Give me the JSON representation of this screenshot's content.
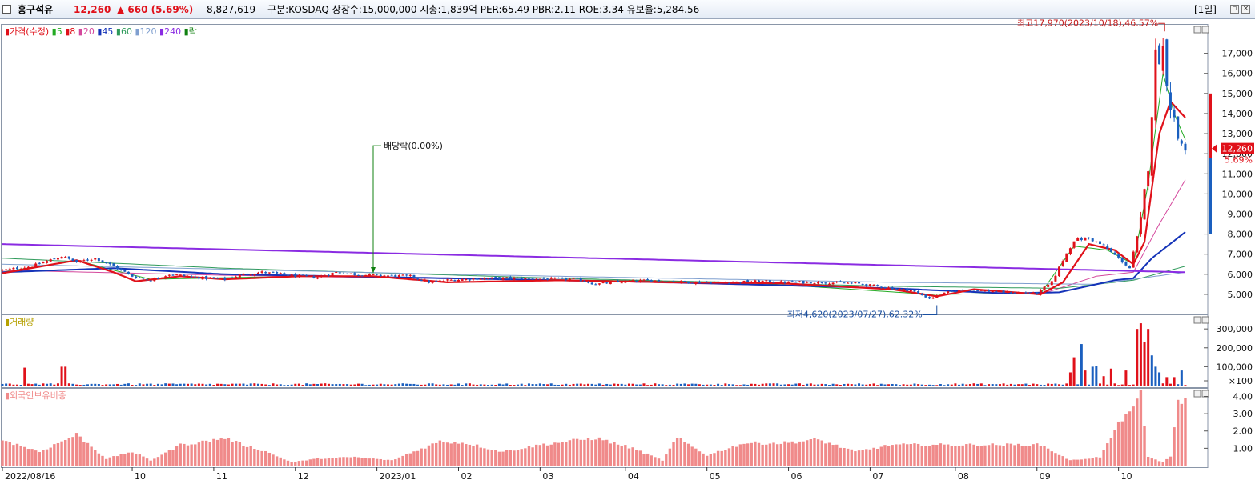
{
  "header": {
    "name": "흥구석유",
    "price": "12,260",
    "change": "▲ 660 (5.69%)",
    "volume": "8,827,619",
    "info": "구분:KOSDAQ  상장수:15,000,000  시총:1,839억  PER:65.49  PBR:2.11  ROE:3.34  유보율:5,284.56",
    "period": "[1일]"
  },
  "legend": {
    "price": [
      "가격(수정)",
      "5",
      "8",
      "20",
      "45",
      "60",
      "120",
      "240",
      "락"
    ],
    "volume": "거래량",
    "foreign": "외국인보유비중"
  },
  "annotations": {
    "high": "최고17,970(2023/10/18),46.57%",
    "low": "최저4,620(2023/07/27),62.32%",
    "dividend": "배당락(0.00%)"
  },
  "tags": {
    "current_price": "12,260",
    "current_pct": "5.69%"
  },
  "colors": {
    "up": "#e0111a",
    "down": "#1a5fbf",
    "ma5": "#22aa22",
    "ma8": "#e0111a",
    "ma20": "#d4479c",
    "ma45": "#1433b8",
    "ma60": "#2e9a5a",
    "ma120": "#7f9fcf",
    "ma240": "#8a2be2",
    "foreign": "#f08a8a",
    "annot_high": "#c41a1a",
    "annot_low": "#1a4fa0",
    "annot_div": "#108010"
  },
  "chart_data": [
    {
      "type": "candlestick",
      "title": "",
      "ylim": [
        4200,
        18300
      ],
      "y_ticks": [
        5000,
        6000,
        7000,
        8000,
        9000,
        10000,
        11000,
        12000,
        13000,
        14000,
        15000,
        16000,
        17000
      ],
      "y_tick_labels": [
        "5,000",
        "6,000",
        "7,000",
        "8,000",
        "9,000",
        "10,000",
        "11,000",
        "12,000",
        "13,000",
        "14,000",
        "15,000",
        "16,000",
        "17,000"
      ],
      "x_labels": [
        "2022/08/16",
        "10",
        "11",
        "12",
        "2023/01",
        "02",
        "03",
        "04",
        "05",
        "06",
        "07",
        "08",
        "09",
        "10"
      ],
      "price_path": [
        [
          0,
          6200
        ],
        [
          8,
          6400
        ],
        [
          16,
          6900
        ],
        [
          20,
          6600
        ],
        [
          25,
          6800
        ],
        [
          30,
          6400
        ],
        [
          35,
          5900
        ],
        [
          40,
          5700
        ],
        [
          45,
          6000
        ],
        [
          50,
          5900
        ],
        [
          55,
          5800
        ],
        [
          60,
          5750
        ],
        [
          65,
          6000
        ],
        [
          70,
          6100
        ],
        [
          75,
          6000
        ],
        [
          80,
          5900
        ],
        [
          85,
          5850
        ],
        [
          90,
          6100
        ],
        [
          95,
          6000
        ],
        [
          100,
          5950
        ],
        [
          110,
          5900
        ],
        [
          115,
          5600
        ],
        [
          120,
          5700
        ],
        [
          130,
          5800
        ],
        [
          140,
          5800
        ],
        [
          150,
          5750
        ],
        [
          155,
          5750
        ],
        [
          160,
          5500
        ],
        [
          165,
          5600
        ],
        [
          170,
          5650
        ],
        [
          175,
          5700
        ],
        [
          185,
          5600
        ],
        [
          195,
          5600
        ],
        [
          205,
          5650
        ],
        [
          210,
          5600
        ],
        [
          220,
          5600
        ],
        [
          230,
          5550
        ],
        [
          240,
          5300
        ],
        [
          245,
          5200
        ],
        [
          250,
          4800
        ],
        [
          255,
          5100
        ],
        [
          260,
          5250
        ],
        [
          270,
          5100
        ],
        [
          279,
          5050
        ],
        [
          283,
          5600
        ],
        [
          286,
          6700
        ],
        [
          289,
          7700
        ],
        [
          293,
          7800
        ],
        [
          297,
          7400
        ],
        [
          301,
          6800
        ],
        [
          304,
          6300
        ],
        [
          307,
          8600
        ],
        [
          309,
          11500
        ],
        [
          311,
          16800
        ],
        [
          313,
          17200
        ],
        [
          315,
          14500
        ],
        [
          317,
          12800
        ],
        [
          319,
          12260
        ]
      ],
      "moving_averages": [
        {
          "name": "8",
          "color": "#e0111a",
          "width": 2.2,
          "values": [
            [
              0,
              6050
            ],
            [
              20,
              6700
            ],
            [
              30,
              6100
            ],
            [
              36,
              5650
            ],
            [
              48,
              5900
            ],
            [
              60,
              5750
            ],
            [
              80,
              5900
            ],
            [
              100,
              5900
            ],
            [
              120,
              5600
            ],
            [
              150,
              5700
            ],
            [
              180,
              5600
            ],
            [
              210,
              5550
            ],
            [
              240,
              5250
            ],
            [
              252,
              4900
            ],
            [
              262,
              5250
            ],
            [
              280,
              5000
            ],
            [
              286,
              5600
            ],
            [
              293,
              7500
            ],
            [
              300,
              7200
            ],
            [
              305,
              6500
            ],
            [
              308,
              7600
            ],
            [
              312,
              13000
            ],
            [
              315,
              14600
            ],
            [
              319,
              13800
            ]
          ]
        },
        {
          "name": "45",
          "color": "#1433b8",
          "width": 2,
          "values": [
            [
              0,
              6100
            ],
            [
              30,
              6300
            ],
            [
              60,
              6000
            ],
            [
              120,
              5800
            ],
            [
              180,
              5600
            ],
            [
              240,
              5300
            ],
            [
              270,
              5050
            ],
            [
              285,
              5100
            ],
            [
              300,
              5700
            ],
            [
              305,
              5800
            ],
            [
              310,
              6800
            ],
            [
              319,
              8100
            ]
          ]
        },
        {
          "name": "240",
          "color": "#8a2be2",
          "width": 2,
          "values": [
            [
              0,
              7500
            ],
            [
              319,
              6100
            ]
          ]
        },
        {
          "name": "5",
          "color": "#22aa22",
          "width": 1,
          "values": [
            [
              0,
              6100
            ],
            [
              20,
              6700
            ],
            [
              30,
              6200
            ],
            [
              40,
              5750
            ],
            [
              80,
              5900
            ],
            [
              140,
              5750
            ],
            [
              200,
              5600
            ],
            [
              250,
              5000
            ],
            [
              280,
              5050
            ],
            [
              289,
              7400
            ],
            [
              298,
              7200
            ],
            [
              305,
              6500
            ],
            [
              309,
              10500
            ],
            [
              313,
              16000
            ],
            [
              316,
              14000
            ],
            [
              319,
              12700
            ]
          ]
        },
        {
          "name": "20",
          "color": "#d4479c",
          "width": 1,
          "values": [
            [
              0,
              6200
            ],
            [
              60,
              5950
            ],
            [
              150,
              5700
            ],
            [
              240,
              5300
            ],
            [
              280,
              5000
            ],
            [
              295,
              5900
            ],
            [
              305,
              6100
            ],
            [
              312,
              8500
            ],
            [
              319,
              10700
            ]
          ]
        },
        {
          "name": "60",
          "color": "#2e9a5a",
          "width": 1,
          "values": [
            [
              0,
              6800
            ],
            [
              60,
              6300
            ],
            [
              150,
              5800
            ],
            [
              240,
              5400
            ],
            [
              285,
              5300
            ],
            [
              305,
              5700
            ],
            [
              319,
              6400
            ]
          ]
        },
        {
          "name": "120",
          "color": "#7f9fcf",
          "width": 1,
          "values": [
            [
              0,
              6500
            ],
            [
              120,
              6000
            ],
            [
              240,
              5600
            ],
            [
              295,
              5500
            ],
            [
              319,
              6100
            ]
          ]
        }
      ]
    },
    {
      "type": "bar",
      "title": "",
      "ylim": [
        0,
        360000
      ],
      "y_ticks": [
        100,
        100000,
        200000,
        300000
      ],
      "y_tick_labels": [
        "×100",
        "100,000",
        "200,000",
        "300,000"
      ],
      "spikes": [
        [
          6,
          95000,
          "up"
        ],
        [
          16,
          100000,
          "up"
        ],
        [
          17,
          100000,
          "up"
        ],
        [
          288,
          70000,
          "up"
        ],
        [
          289,
          150000,
          "up"
        ],
        [
          291,
          220000,
          "down"
        ],
        [
          292,
          80000,
          "up"
        ],
        [
          294,
          100000,
          "down"
        ],
        [
          295,
          105000,
          "down"
        ],
        [
          297,
          50000,
          "up"
        ],
        [
          299,
          90000,
          "up"
        ],
        [
          303,
          80000,
          "up"
        ],
        [
          306,
          300000,
          "up"
        ],
        [
          307,
          330000,
          "up"
        ],
        [
          308,
          230000,
          "up"
        ],
        [
          309,
          300000,
          "up"
        ],
        [
          310,
          160000,
          "down"
        ],
        [
          311,
          100000,
          "down"
        ],
        [
          312,
          70000,
          "down"
        ],
        [
          314,
          45000,
          "up"
        ],
        [
          316,
          45000,
          "up"
        ],
        [
          318,
          80000,
          "down"
        ]
      ]
    },
    {
      "type": "bar",
      "title": "",
      "ylim": [
        0,
        4.3
      ],
      "y_ticks": [
        1.0,
        2.0,
        3.0,
        4.0
      ],
      "y_tick_labels": [
        "1.00",
        "2.00",
        "3.00",
        "4.00"
      ],
      "profile": [
        [
          0,
          1.5
        ],
        [
          10,
          0.8
        ],
        [
          20,
          1.8
        ],
        [
          28,
          0.4
        ],
        [
          35,
          0.8
        ],
        [
          40,
          0.3
        ],
        [
          48,
          1.2
        ],
        [
          55,
          1.4
        ],
        [
          60,
          1.6
        ],
        [
          65,
          1.2
        ],
        [
          70,
          0.9
        ],
        [
          78,
          0.2
        ],
        [
          85,
          0.4
        ],
        [
          95,
          0.5
        ],
        [
          105,
          0.3
        ],
        [
          118,
          1.4
        ],
        [
          125,
          1.3
        ],
        [
          135,
          0.8
        ],
        [
          145,
          1.2
        ],
        [
          160,
          1.6
        ],
        [
          170,
          1.0
        ],
        [
          178,
          0.3
        ],
        [
          182,
          1.6
        ],
        [
          190,
          0.6
        ],
        [
          200,
          1.3
        ],
        [
          210,
          1.3
        ],
        [
          220,
          1.5
        ],
        [
          230,
          0.8
        ],
        [
          240,
          1.2
        ],
        [
          260,
          1.2
        ],
        [
          280,
          1.2
        ],
        [
          288,
          0.3
        ],
        [
          296,
          0.5
        ],
        [
          300,
          2.0
        ],
        [
          303,
          3.1
        ],
        [
          305,
          3.2
        ],
        [
          307,
          4.1
        ],
        [
          309,
          0.5
        ],
        [
          313,
          0.2
        ],
        [
          315,
          0.5
        ],
        [
          317,
          3.9
        ],
        [
          319,
          3.7
        ]
      ]
    }
  ]
}
